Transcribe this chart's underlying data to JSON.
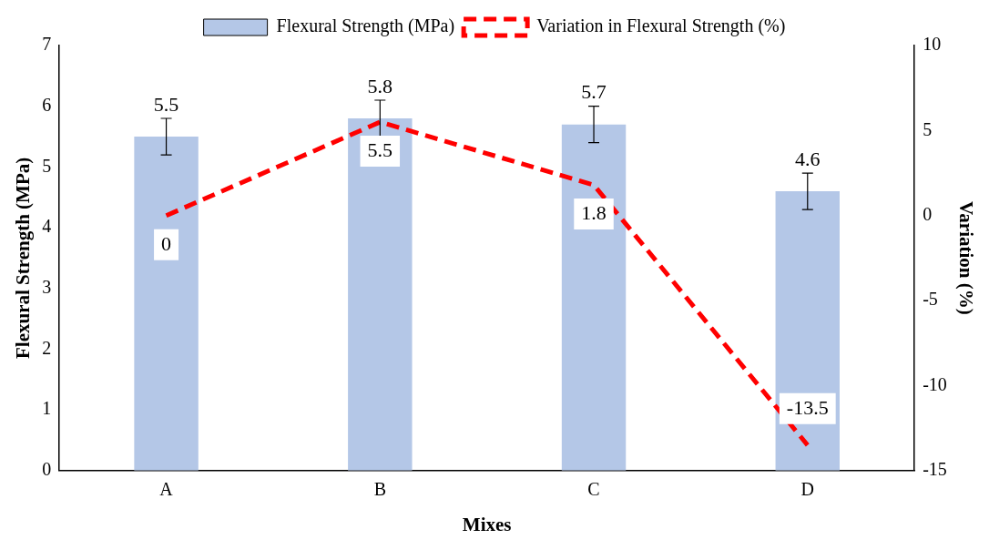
{
  "chart_data": {
    "type": "bar",
    "xlabel": "Mixes",
    "ylabel": "Flexural Strength (MPa)",
    "y2label": "Variation (%)",
    "categories": [
      "A",
      "B",
      "C",
      "D"
    ],
    "series": [
      {
        "name": "Flexural Strength (MPa)",
        "color": "#b4c7e7",
        "values": [
          5.5,
          5.8,
          5.7,
          4.6
        ],
        "errors": [
          0.3,
          0.3,
          0.3,
          0.3
        ]
      },
      {
        "name": "Variation in Flexural Strength (%)",
        "type": "line",
        "axis": "y2",
        "color": "#ff0000",
        "line_style": "dashed",
        "marker": "none",
        "values": [
          0,
          5.5,
          1.8,
          -13.5
        ]
      }
    ],
    "ylim": [
      0,
      7
    ],
    "yticks": [
      0,
      1,
      2,
      3,
      4,
      5,
      6,
      7
    ],
    "y2lim": [
      -15,
      10
    ],
    "y2ticks": [
      -15,
      -10,
      -5,
      0,
      5,
      10
    ],
    "data_labels": true,
    "legend": "top",
    "grid": false
  }
}
